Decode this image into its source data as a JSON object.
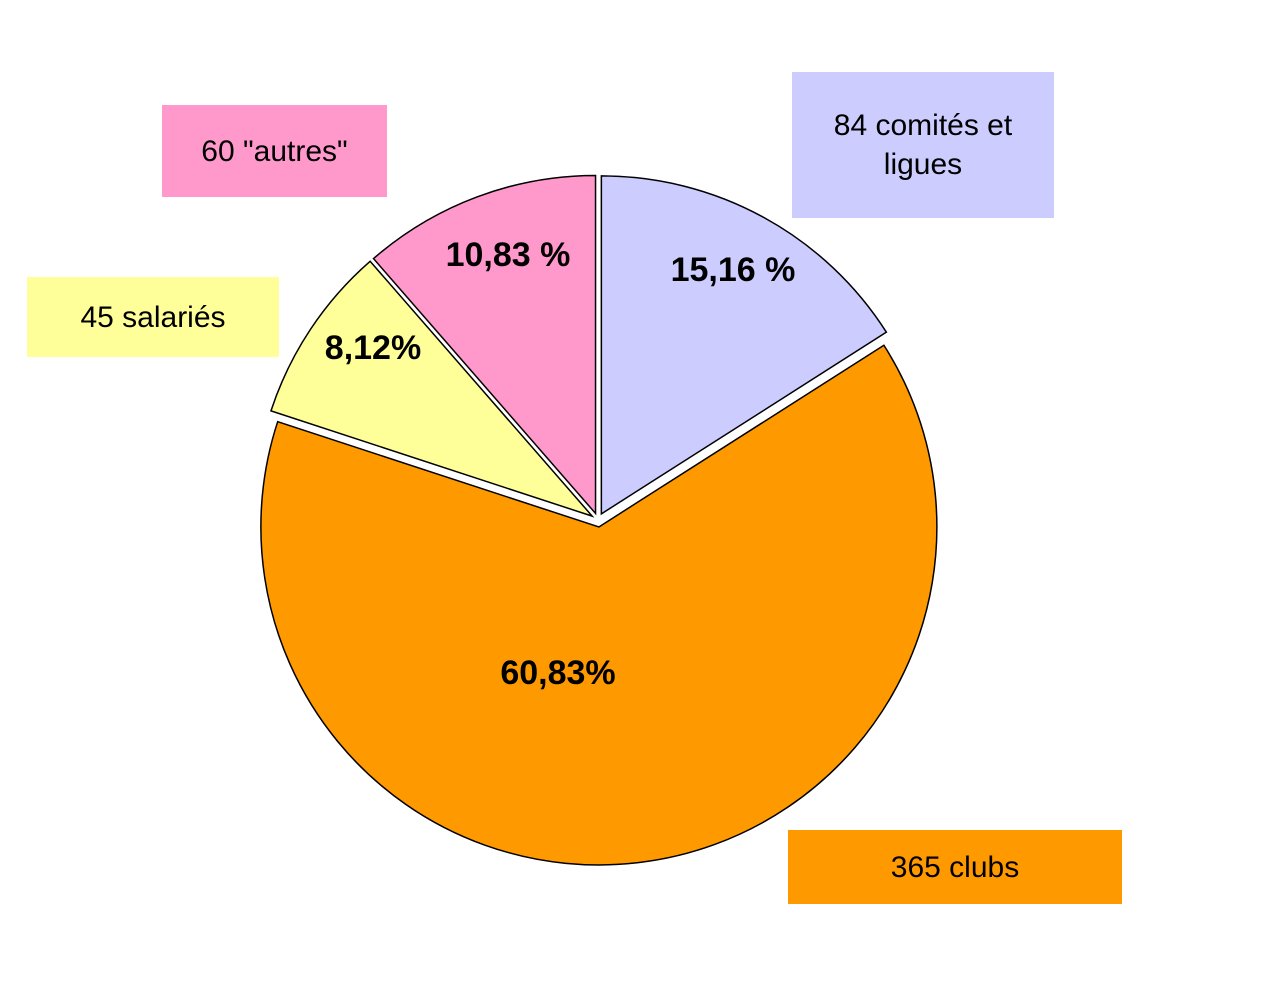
{
  "chart_data": {
    "type": "pie",
    "categories": [
      "84 comités et ligues",
      "365 clubs",
      "45 salariés",
      "60 \"autres\""
    ],
    "values": [
      15.16,
      60.83,
      8.12,
      10.83
    ],
    "value_labels": [
      "15,16 %",
      "60,83%",
      "8,12%",
      "10,83 %"
    ],
    "colors": [
      "#ccccff",
      "#ff9900",
      "#ffff99",
      "#ff99cc"
    ]
  }
}
